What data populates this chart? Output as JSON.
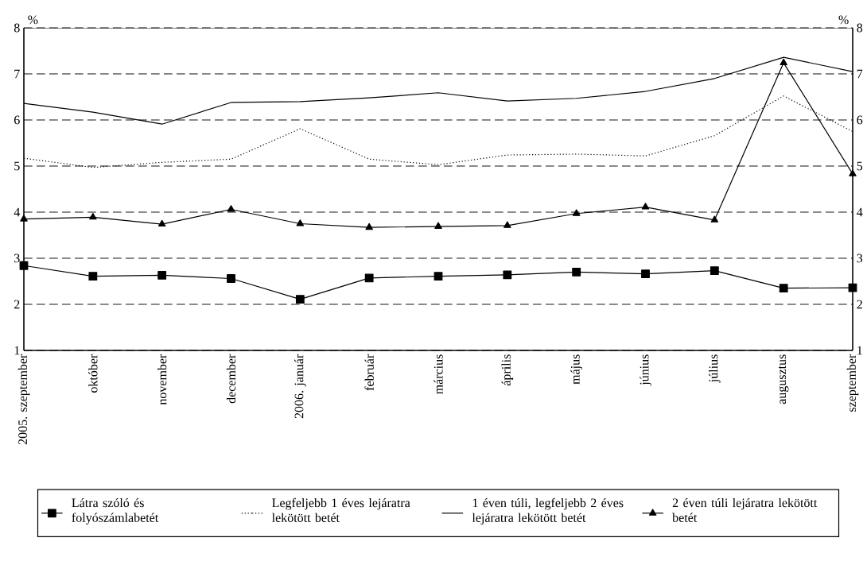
{
  "chart_data": {
    "type": "line",
    "categories": [
      "2005. szeptember",
      "október",
      "november",
      "december",
      "2006. január",
      "február",
      "március",
      "április",
      "május",
      "június",
      "július",
      "augusztus",
      "szeptember"
    ],
    "series": [
      {
        "name": "Látra szóló és folyószámlabetét",
        "color": "#000000",
        "marker": "square",
        "line_style": "solid",
        "values": [
          2.84,
          2.61,
          2.63,
          2.56,
          2.11,
          2.57,
          2.61,
          2.64,
          2.7,
          2.66,
          2.73,
          2.35,
          2.36
        ]
      },
      {
        "name": "Legfeljebb 1 éves lejáratra lekötött betét",
        "color": "#000000",
        "marker": "none",
        "line_style": "dotted",
        "values": [
          5.17,
          4.97,
          5.08,
          5.15,
          5.81,
          5.15,
          5.03,
          5.24,
          5.26,
          5.22,
          5.66,
          6.52,
          5.75
        ]
      },
      {
        "name": "1 éven túli, legfeljebb 2 éves lejáratra lekötött betét",
        "color": "#000000",
        "marker": "none",
        "line_style": "solid",
        "values": [
          6.36,
          6.17,
          5.91,
          6.38,
          6.4,
          6.48,
          6.59,
          6.41,
          6.47,
          6.62,
          6.9,
          7.36,
          7.05
        ]
      },
      {
        "name": "2 éven túli lejáratra lekötött betét",
        "color": "#000000",
        "marker": "triangle",
        "line_style": "solid",
        "values": [
          3.85,
          3.89,
          3.74,
          4.06,
          3.75,
          3.67,
          3.69,
          3.71,
          3.97,
          4.11,
          3.83,
          7.24,
          4.83
        ]
      }
    ],
    "ylabel": "%",
    "y2label": "%",
    "ylim": [
      1,
      8
    ],
    "yticks": [
      1,
      2,
      3,
      4,
      5,
      6,
      7,
      8
    ],
    "y2lim": [
      1,
      8
    ],
    "y2ticks": [
      1,
      2,
      3,
      4,
      5,
      6,
      7,
      8
    ],
    "grid": "y",
    "legend": "bottom"
  }
}
